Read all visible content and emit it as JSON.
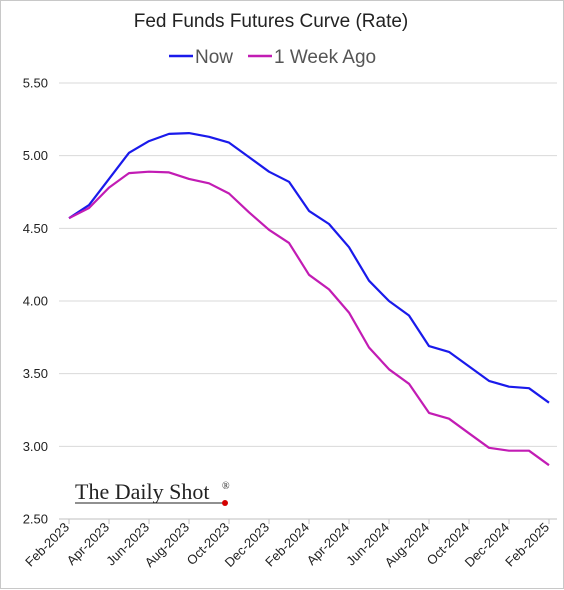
{
  "chart_data": {
    "type": "line",
    "title": "Fed Funds Futures Curve (Rate)",
    "xlabel": "",
    "ylabel": "",
    "ylim": [
      2.5,
      5.5
    ],
    "yticks": [
      "5.50",
      "5.00",
      "4.50",
      "4.00",
      "3.50",
      "3.00",
      "2.50"
    ],
    "ytick_values": [
      5.5,
      5.0,
      4.5,
      4.0,
      3.5,
      3.0,
      2.5
    ],
    "xtick_labels": [
      "Feb-2023",
      "Apr-2023",
      "Jun-2023",
      "Aug-2023",
      "Oct-2023",
      "Dec-2023",
      "Feb-2024",
      "Apr-2024",
      "Jun-2024",
      "Aug-2024",
      "Oct-2024",
      "Dec-2024",
      "Feb-2025"
    ],
    "categories": [
      "Feb-2023",
      "Mar-2023",
      "Apr-2023",
      "May-2023",
      "Jun-2023",
      "Jul-2023",
      "Aug-2023",
      "Sep-2023",
      "Oct-2023",
      "Nov-2023",
      "Dec-2023",
      "Jan-2024",
      "Feb-2024",
      "Mar-2024",
      "Apr-2024",
      "May-2024",
      "Jun-2024",
      "Jul-2024",
      "Aug-2024",
      "Sep-2024",
      "Oct-2024",
      "Nov-2024",
      "Dec-2024",
      "Jan-2025",
      "Feb-2025"
    ],
    "grid": true,
    "legend_position": "top",
    "series": [
      {
        "name": "Now",
        "color": "#1a1aeb",
        "values": [
          4.57,
          4.66,
          4.84,
          5.02,
          5.1,
          5.15,
          5.155,
          5.13,
          5.09,
          4.99,
          4.89,
          4.82,
          4.62,
          4.53,
          4.37,
          4.14,
          4.0,
          3.9,
          3.69,
          3.65,
          3.55,
          3.45,
          3.41,
          3.4,
          3.3
        ]
      },
      {
        "name": "1 Week Ago",
        "color": "#c21cb4",
        "values": [
          4.57,
          4.64,
          4.78,
          4.88,
          4.89,
          4.885,
          4.84,
          4.81,
          4.74,
          4.61,
          4.49,
          4.4,
          4.18,
          4.08,
          3.92,
          3.68,
          3.53,
          3.43,
          3.23,
          3.19,
          3.09,
          2.99,
          2.97,
          2.97,
          2.87
        ]
      }
    ]
  },
  "brand": {
    "name": "The Daily Shot",
    "mark": "®",
    "dot_color": "#d40000"
  }
}
